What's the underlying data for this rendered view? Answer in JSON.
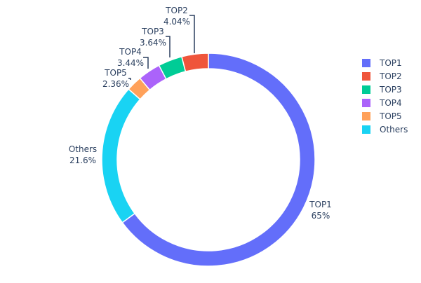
{
  "chart_data": {
    "type": "pie",
    "hole": true,
    "slices": [
      {
        "label": "TOP1",
        "value": 65,
        "text": "65%",
        "color": "#636efa"
      },
      {
        "label": "TOP2",
        "value": 4.04,
        "text": "4.04%",
        "color": "#EF553B"
      },
      {
        "label": "TOP3",
        "value": 3.64,
        "text": "3.64%",
        "color": "#00cc96"
      },
      {
        "label": "TOP4",
        "value": 3.44,
        "text": "3.44%",
        "color": "#ab63fa"
      },
      {
        "label": "TOP5",
        "value": 2.36,
        "text": "2.36%",
        "color": "#FFA15A"
      },
      {
        "label": "Others",
        "value": 21.6,
        "text": "21.6%",
        "color": "#19d3f3"
      }
    ],
    "legend": {
      "placement": "right",
      "entries": [
        "TOP1",
        "TOP2",
        "TOP3",
        "TOP4",
        "TOP5",
        "Others"
      ]
    }
  }
}
